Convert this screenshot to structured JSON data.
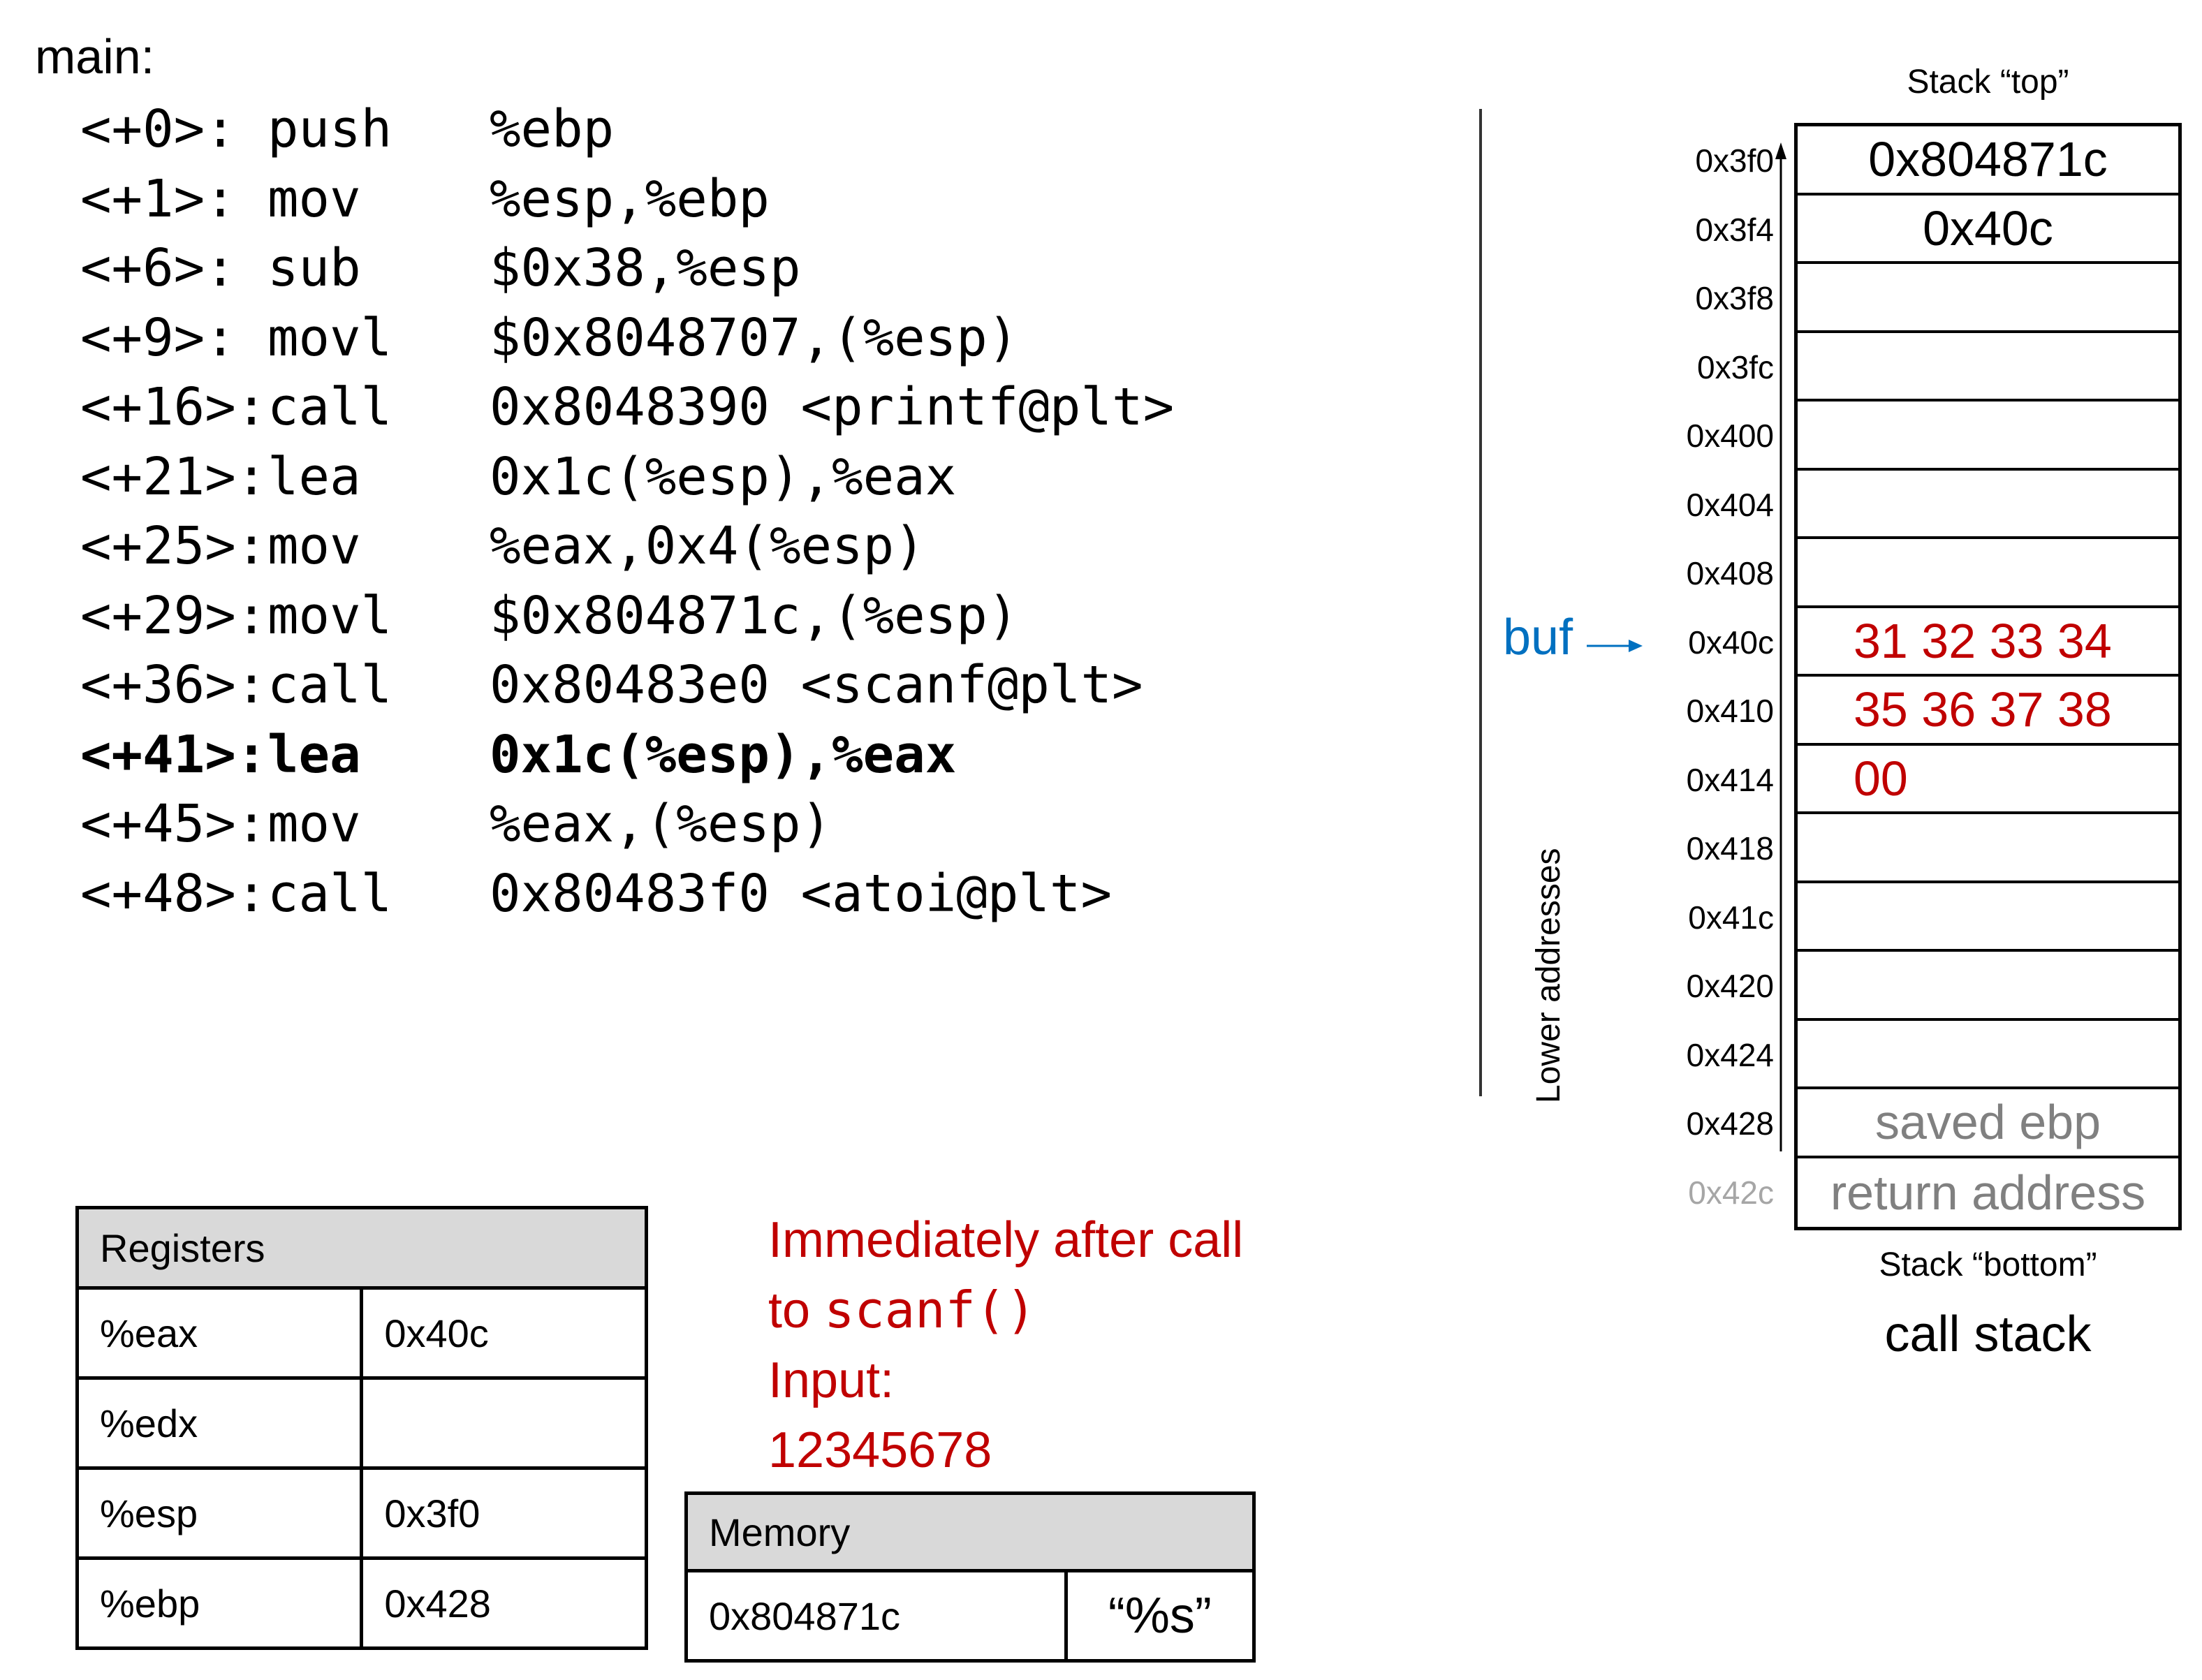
{
  "title": "main:",
  "assembly": [
    {
      "offset": "<+0>:",
      "op": "push",
      "args": "%ebp",
      "bold": false
    },
    {
      "offset": "<+1>:",
      "op": "mov",
      "args": "%esp,%ebp",
      "bold": false
    },
    {
      "offset": "<+6>:",
      "op": "sub",
      "args": "$0x38,%esp",
      "bold": false
    },
    {
      "offset": "<+9>:",
      "op": "movl",
      "args": "$0x8048707,(%esp)",
      "bold": false
    },
    {
      "offset": "<+16>:",
      "op": "call",
      "args": "0x8048390 <printf@plt>",
      "bold": false
    },
    {
      "offset": "<+21>:",
      "op": "lea",
      "args": "0x1c(%esp),%eax",
      "bold": false
    },
    {
      "offset": "<+25>:",
      "op": "mov",
      "args": "%eax,0x4(%esp)",
      "bold": false
    },
    {
      "offset": "<+29>:",
      "op": "movl",
      "args": "$0x804871c,(%esp)",
      "bold": false
    },
    {
      "offset": "<+36>:",
      "op": "call",
      "args": "0x80483e0 <scanf@plt>",
      "bold": false
    },
    {
      "offset": "<+41>:",
      "op": "lea",
      "args": "0x1c(%esp),%eax",
      "bold": true
    },
    {
      "offset": "<+45>:",
      "op": "mov",
      "args": "%eax,(%esp)",
      "bold": false
    },
    {
      "offset": "<+48>:",
      "op": "call",
      "args": "0x80483f0 <atoi@plt>",
      "bold": false
    }
  ],
  "stack": {
    "top_label": "Stack “top”",
    "bottom_label": "Stack “bottom”",
    "caption": "call stack",
    "axis_label": "Lower addresses",
    "pointer_label": "buf",
    "cells": [
      {
        "addr": "0x3f0",
        "value": "0x804871c",
        "style": "black"
      },
      {
        "addr": "0x3f4",
        "value": "0x40c",
        "style": "black"
      },
      {
        "addr": "0x3f8",
        "value": "",
        "style": "black"
      },
      {
        "addr": "0x3fc",
        "value": "",
        "style": "black"
      },
      {
        "addr": "0x400",
        "value": "",
        "style": "black"
      },
      {
        "addr": "0x404",
        "value": "",
        "style": "black"
      },
      {
        "addr": "0x408",
        "value": "",
        "style": "black"
      },
      {
        "addr": "0x40c",
        "value": "31 32 33 34",
        "style": "red"
      },
      {
        "addr": "0x410",
        "value": "35 36 37 38",
        "style": "red"
      },
      {
        "addr": "0x414",
        "value": "00",
        "style": "red"
      },
      {
        "addr": "0x418",
        "value": "",
        "style": "black"
      },
      {
        "addr": "0x41c",
        "value": "",
        "style": "black"
      },
      {
        "addr": "0x420",
        "value": "",
        "style": "black"
      },
      {
        "addr": "0x424",
        "value": "",
        "style": "black"
      },
      {
        "addr": "0x428",
        "value": "saved ebp",
        "style": "gray"
      },
      {
        "addr": "0x42c",
        "value": "return address",
        "style": "gray",
        "addr_gray": true
      }
    ]
  },
  "registers": {
    "header": "Registers",
    "rows": [
      {
        "name": "%eax",
        "value": "0x40c"
      },
      {
        "name": "%edx",
        "value": ""
      },
      {
        "name": "%esp",
        "value": "0x3f0"
      },
      {
        "name": "%ebp",
        "value": "0x428"
      }
    ]
  },
  "memory": {
    "header": "Memory",
    "rows": [
      {
        "addr": "0x804871c",
        "value": "“%s”"
      }
    ]
  },
  "note": {
    "line1": "Immediately after call",
    "line2_prefix": "to ",
    "line2_code": "scanf()",
    "line3": "Input:",
    "line4": "12345678"
  },
  "colors": {
    "red": "#C00000",
    "blue": "#0070C0",
    "gray": "#808080",
    "header_gray": "#D9D9D9"
  }
}
